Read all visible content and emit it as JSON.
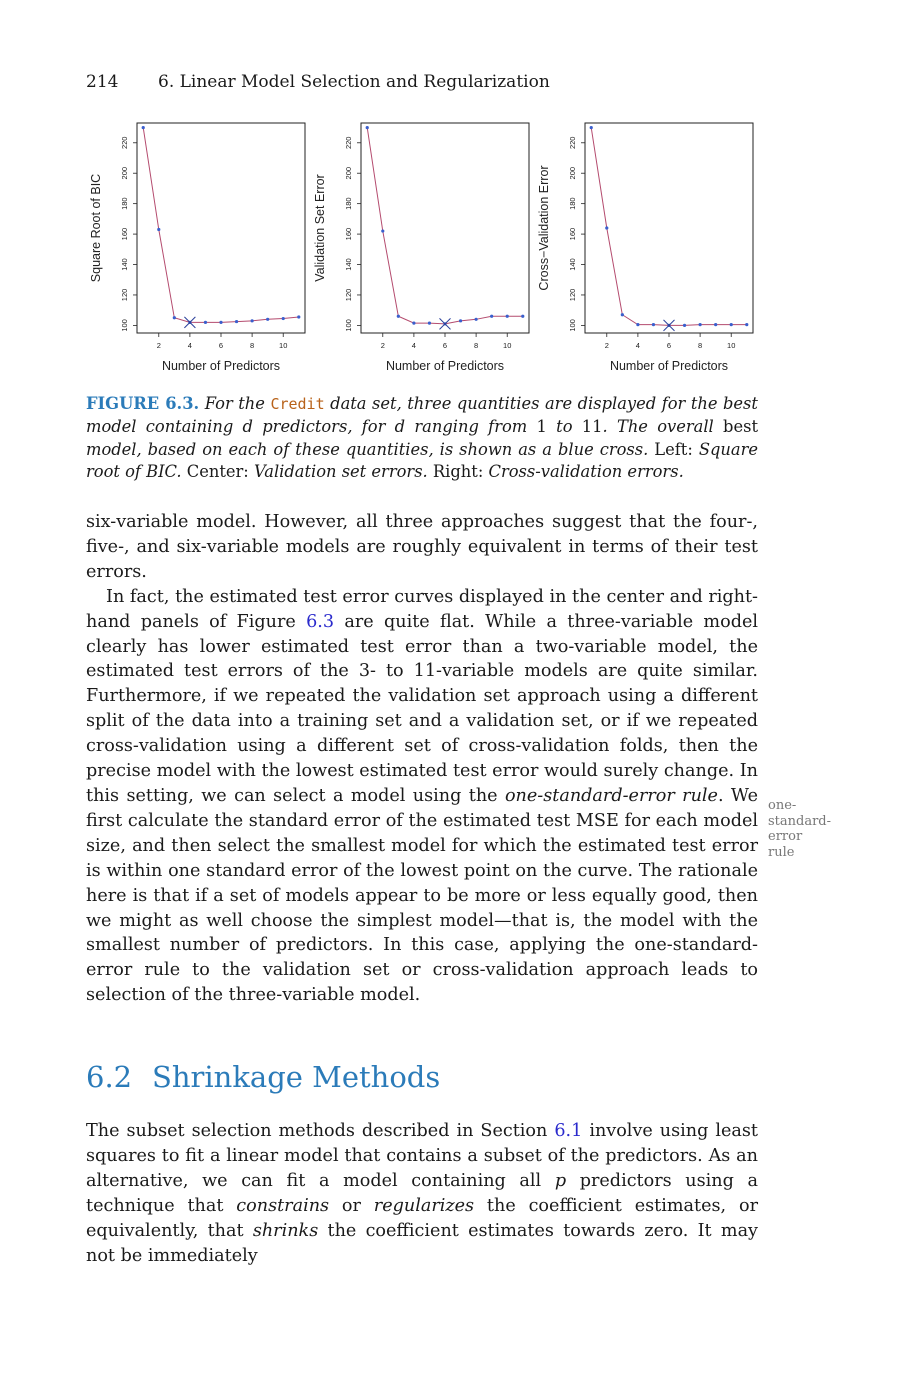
{
  "header": {
    "page_number": "214",
    "running_title": "6.  Linear Model Selection and Regularization"
  },
  "figure": {
    "charts": [
      {
        "type": "line",
        "ylabel": "Square Root of BIC",
        "xlabel": "Number of Predictors",
        "x": [
          1,
          2,
          3,
          4,
          5,
          6,
          7,
          8,
          9,
          10,
          11
        ],
        "y": [
          230,
          163,
          105,
          102,
          102,
          102,
          102.5,
          103,
          104,
          104.5,
          105.5
        ],
        "xticks": [
          "2",
          "4",
          "6",
          "8",
          "10"
        ],
        "yticks": [
          "100",
          "120",
          "140",
          "160",
          "180",
          "200",
          "220"
        ],
        "xlim": [
          0.6,
          11.4
        ],
        "ylim": [
          95,
          233
        ],
        "best_x": 4,
        "best_y": 102,
        "line_color": "#b44b6e",
        "point_color": "#3a5fcd"
      },
      {
        "type": "line",
        "ylabel": "Validation Set Error",
        "xlabel": "Number of Predictors",
        "x": [
          1,
          2,
          3,
          4,
          5,
          6,
          7,
          8,
          9,
          10,
          11
        ],
        "y": [
          230,
          162,
          106,
          101.5,
          101.5,
          101,
          103,
          104,
          106,
          106,
          106
        ],
        "xticks": [
          "2",
          "4",
          "6",
          "8",
          "10"
        ],
        "yticks": [
          "100",
          "120",
          "140",
          "160",
          "180",
          "200",
          "220"
        ],
        "xlim": [
          0.6,
          11.4
        ],
        "ylim": [
          95,
          233
        ],
        "best_x": 6,
        "best_y": 101,
        "line_color": "#b44b6e",
        "point_color": "#3a5fcd"
      },
      {
        "type": "line",
        "ylabel": "Cross−Validation Error",
        "xlabel": "Number of Predictors",
        "x": [
          1,
          2,
          3,
          4,
          5,
          6,
          7,
          8,
          9,
          10,
          11
        ],
        "y": [
          230,
          164,
          107,
          100.5,
          100.5,
          100,
          100,
          100.5,
          100.5,
          100.5,
          100.5
        ],
        "xticks": [
          "2",
          "4",
          "6",
          "8",
          "10"
        ],
        "yticks": [
          "100",
          "120",
          "140",
          "160",
          "180",
          "200",
          "220"
        ],
        "xlim": [
          0.6,
          11.4
        ],
        "ylim": [
          95,
          233
        ],
        "best_x": 6,
        "best_y": 100,
        "line_color": "#b44b6e",
        "point_color": "#3a5fcd"
      }
    ],
    "caption": {
      "label": "FIGURE 6.3.",
      "t1": "For the",
      "dataset": "Credit",
      "t2": "data set, three quantities are displayed for the best model containing",
      "var_d": "d",
      "t3": "predictors, for",
      "var_d2": "d",
      "t4": "ranging from",
      "n1": "1",
      "t5": "to",
      "n2": "11",
      "t6": ". The overall",
      "best": "best",
      "t7": "model, based on each of these quantities, is shown as a blue cross.",
      "left_label": "Left:",
      "left_text": "Square root of BIC.",
      "center_label": "Center:",
      "center_text": "Validation set errors.",
      "right_label": "Right:",
      "right_text": "Cross-validation errors."
    }
  },
  "paragraph1": "six-variable model. However, all three approaches suggest that the four-, five-, and six-variable models are roughly equivalent in terms of their test errors.",
  "paragraph2": {
    "a": "In fact, the estimated test error curves displayed in the center and right-hand panels of Figure ",
    "fig_ref": "6.3",
    "b": " are quite flat. While a three-variable model clearly has lower estimated test error than a two-variable model, the estimated test errors of the 3- to 11-variable models are quite similar. Furthermore, if we repeated the validation set approach using a different split of the data into a training set and a validation set, or if we repeated cross-validation using a different set of cross-validation folds, then the precise model with the lowest estimated test error would surely change. In this setting, we can select a model using the ",
    "term": "one-standard-error rule",
    "c": ". We first calculate the standard error of the estimated test MSE for each model size, and then select the smallest model for which the estimated test error is within one standard error of the lowest point on the curve. The rationale here is that if a set of models appear to be more or less equally good, then we might as well choose the simplest model—that is, the model with the smallest number of predictors. In this case, applying the one-standard-error rule to the validation set or cross-validation approach leads to selection of the three-variable model."
  },
  "margin_note": [
    "one-",
    "standard-",
    "error",
    "rule"
  ],
  "section": {
    "number": "6.2",
    "title": "Shrinkage Methods"
  },
  "paragraph3": {
    "a": "The subset selection methods described in Section ",
    "sec_ref": "6.1",
    "b": " involve using least squares to fit a linear model that contains a subset of the predictors. As an alternative, we can fit a model containing all ",
    "var_p": "p",
    "c": " predictors using a technique that ",
    "i1": "constrains",
    "d": " or ",
    "i2": "regularizes",
    "e": " the coefficient estimates, or equivalently, that ",
    "i3": "shrinks",
    "f": " the coefficient estimates towards zero. It may not be immediately"
  }
}
